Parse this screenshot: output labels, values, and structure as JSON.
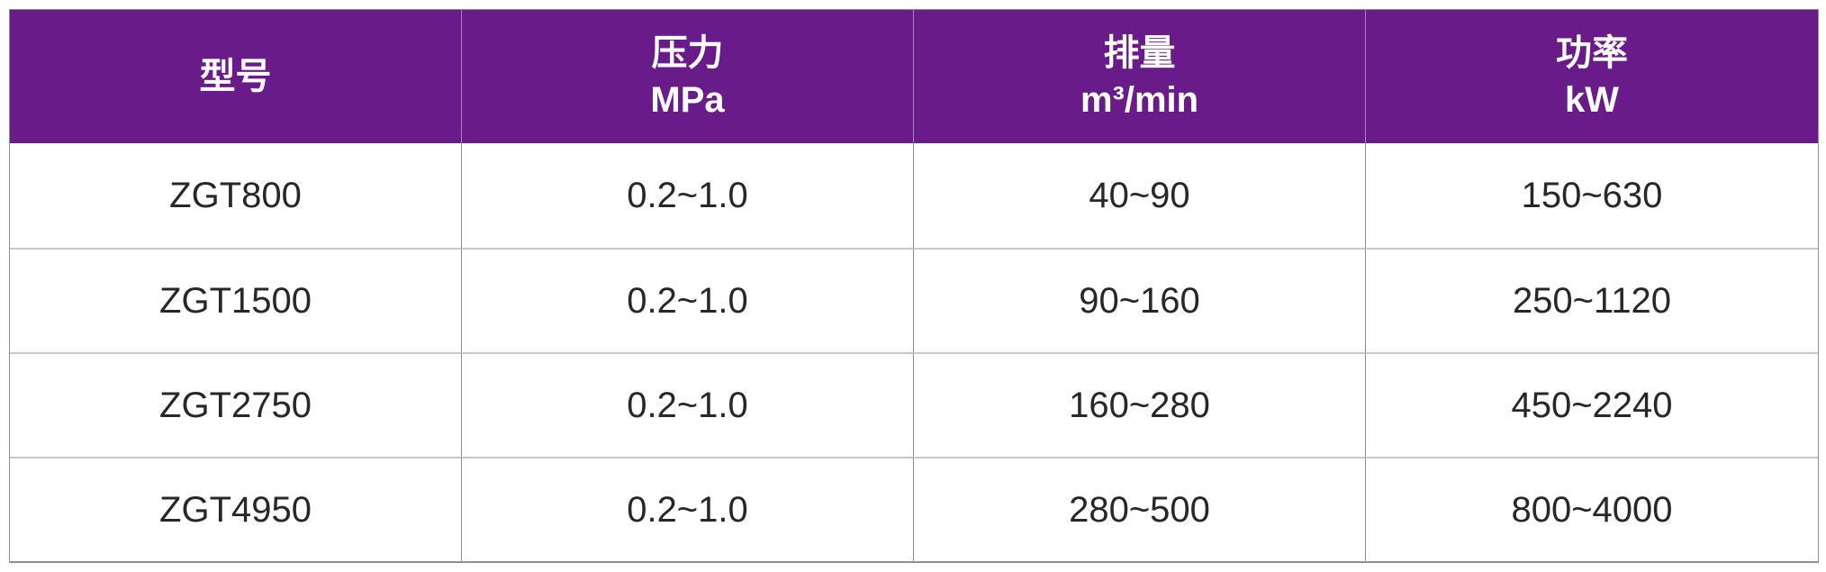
{
  "page": {
    "background": "#ffffff",
    "description_labels": {
      "table_kind": "product-specification-table"
    }
  },
  "colors": {
    "header_bg": "#6A1B8A",
    "header_text": "#FFFFFF",
    "body_text": "#2B2527",
    "grid_vertical": "#8C8C8C",
    "grid_horizontal": "#C8C8C8",
    "outer_border": "#909090"
  },
  "table": {
    "columns": [
      {
        "title": "型号",
        "unit": ""
      },
      {
        "title": "压力",
        "unit": "MPa"
      },
      {
        "title": "排量",
        "unit": "m³/min"
      },
      {
        "title": "功率",
        "unit": "kW"
      }
    ],
    "rows": [
      [
        "ZGT800",
        "0.2~1.0",
        "40~90",
        "150~630"
      ],
      [
        "ZGT1500",
        "0.2~1.0",
        "90~160",
        "250~1120"
      ],
      [
        "ZGT2750",
        "0.2~1.0",
        "160~280",
        "450~2240"
      ],
      [
        "ZGT4950",
        "0.2~1.0",
        "280~500",
        "800~4000"
      ]
    ]
  }
}
